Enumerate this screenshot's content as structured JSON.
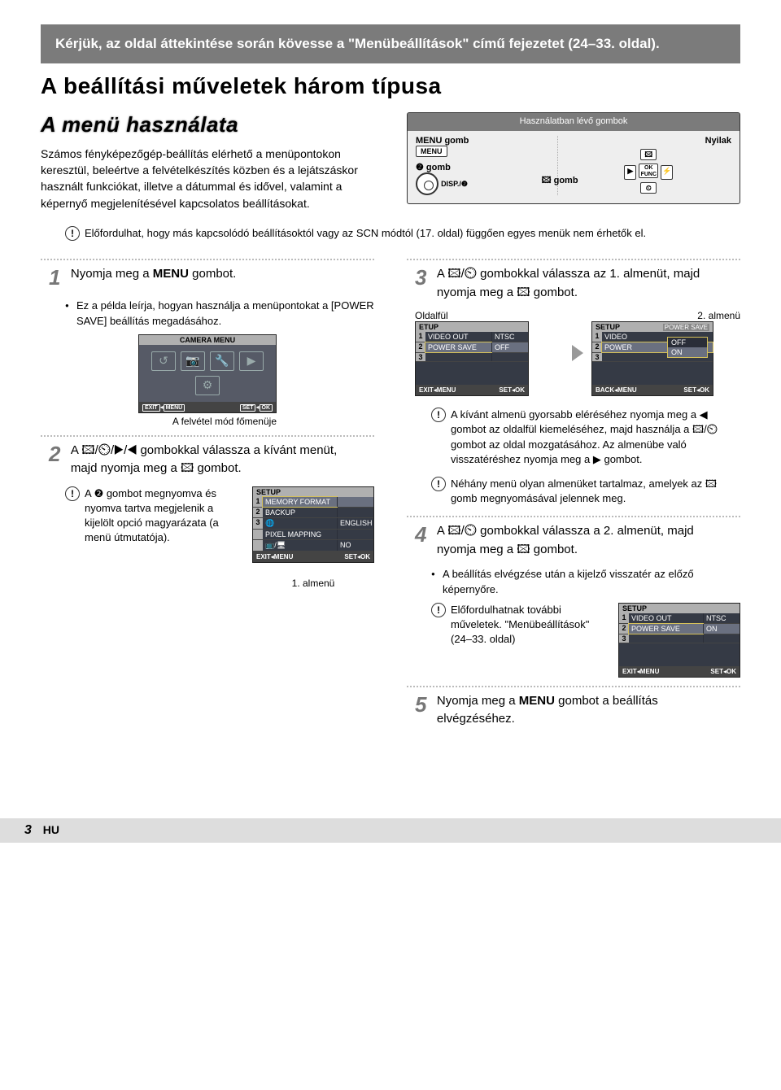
{
  "top_note": "Kérjük, az oldal áttekintése során kövesse a \"Menübeállítások\" című fejezetet (24–33. oldal).",
  "h1": "A beállítási műveletek három típusa",
  "menu_use": {
    "title": "A menü használata",
    "intro": "Számos fényképezőgép-beállítás elérhető a menüpontokon keresztül, beleértve a felvételkészítés közben és a lejátszáskor használt funkciókat, illetve a dátummal és idővel, valamint a képernyő megjelenítésével kapcsolatos beállításokat."
  },
  "buttons_box": {
    "header": "Használatban lévő gombok",
    "menu_label": "MENU gomb",
    "menu_key": "MENU",
    "q_label": "❷ gomb",
    "q_sub": "DISP./❷",
    "arrows_label": "Nyilak",
    "fn_label": "🖾 gomb",
    "ok_func": "OK FUNC",
    "nav_u": "🖾",
    "nav_d": "⏲",
    "nav_l": "▶",
    "nav_r": "⚡"
  },
  "note1": "Előfordulhat, hogy más kapcsolódó beállításoktól vagy az SCN módtól (17. oldal) függően egyes menük nem érhetők el.",
  "step1": {
    "num": "1",
    "text_a": "Nyomja meg a ",
    "text_b": "MENU",
    "text_c": " gombot.",
    "bullet": "Ez a példa leírja, hogyan használja a menüpontokat a [POWER SAVE] beállítás megadásához.",
    "screen_title": "CAMERA MENU",
    "exit": "EXIT",
    "set": "SET",
    "menu_k": "MENU",
    "ok_k": "OK",
    "caption": "A felvétel mód főmenüje"
  },
  "step2": {
    "num": "2",
    "text": "A 🖾/⏲/▶/◀ gombokkal válassza a kívánt menüt, majd nyomja meg a 🖾 gombot.",
    "note": "A ❷ gombot megnyomva és nyomva tartva megjelenik a kijelölt opció magyarázata (a menü útmutatója).",
    "screen_title": "SETUP",
    "rows": [
      {
        "n": "1",
        "k": "MEMORY FORMAT",
        "v": ""
      },
      {
        "n": "2",
        "k": "BACKUP",
        "v": ""
      },
      {
        "n": "3",
        "k": "🌐",
        "v": "ENGLISH"
      },
      {
        "n": "",
        "k": "PIXEL MAPPING",
        "v": ""
      },
      {
        "n": "",
        "k": "📺/🖥",
        "v": "NO"
      }
    ],
    "caption": "1. almenü"
  },
  "step3": {
    "num": "3",
    "text": "A 🖾/⏲ gombokkal válassza az 1. almenüt, majd nyomja meg a 🖾 gombot.",
    "tab_label": "Oldalfül",
    "sub_label": "2. almenü",
    "scrA_title": "ETUP",
    "scrA_rows": [
      {
        "n": "1",
        "k": "VIDEO OUT",
        "v": "NTSC"
      },
      {
        "n": "2",
        "k": "POWER SAVE",
        "v": "OFF"
      },
      {
        "n": "3",
        "k": "",
        "v": ""
      }
    ],
    "scrB_title": "SETUP",
    "scrB_sub": "POWER SAVE",
    "scrB_rows": [
      {
        "n": "1",
        "k": "VIDEO"
      },
      {
        "n": "2",
        "k": "POWER"
      },
      {
        "n": "3",
        "k": ""
      }
    ],
    "opts": [
      "OFF",
      "ON"
    ],
    "back": "BACK",
    "note_a": "A kívánt almenü gyorsabb eléréséhez nyomja meg a ◀ gombot az oldalfül kiemeléséhez, majd használja a 🖾/⏲ gombot az oldal mozgatásához. Az almenübe való visszatéréshez nyomja meg a ▶ gombot.",
    "note_b": "Néhány menü olyan almenüket tartalmaz, amelyek az 🖾 gomb megnyomásával jelennek meg."
  },
  "step4": {
    "num": "4",
    "text": "A 🖾/⏲ gombokkal válassza a 2. almenüt, majd nyomja meg a 🖾 gombot.",
    "bullet": "A beállítás elvégzése után a kijelző visszatér az előző képernyőre.",
    "note": "Előfordulhatnak további műveletek. \"Menübeállítások\" (24–33. oldal)",
    "screen_title": "SETUP",
    "rows": [
      {
        "n": "1",
        "k": "VIDEO OUT",
        "v": "NTSC"
      },
      {
        "n": "2",
        "k": "POWER SAVE",
        "v": "ON"
      },
      {
        "n": "3",
        "k": "",
        "v": ""
      }
    ]
  },
  "step5": {
    "num": "5",
    "text_a": "Nyomja meg a ",
    "text_b": "MENU",
    "text_c": " gombot a beállítás elvégzéséhez."
  },
  "footer": {
    "page": "3",
    "lang": "HU"
  }
}
